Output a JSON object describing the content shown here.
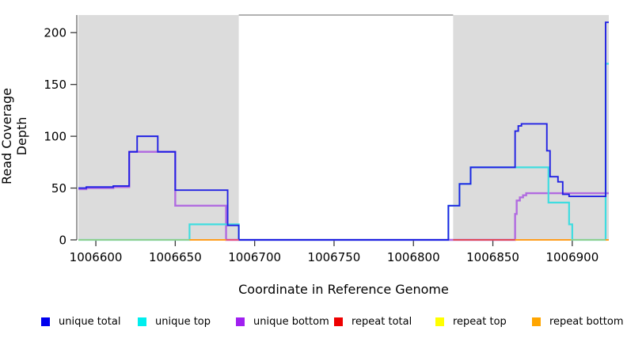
{
  "figure": {
    "xlabel": "Coordinate in Reference Genome",
    "ylabel": "Read Coverage Depth"
  },
  "legend": {
    "items": [
      {
        "label": "unique total",
        "color": "#0000ee"
      },
      {
        "label": "unique top",
        "color": "#00eeee"
      },
      {
        "label": "unique bottom",
        "color": "#a020f0"
      },
      {
        "label": "repeat total",
        "color": "#ee0000"
      },
      {
        "label": "repeat top",
        "color": "#ffff00"
      },
      {
        "label": "repeat bottom",
        "color": "#ffa500"
      }
    ]
  },
  "chart_data": {
    "type": "line",
    "line_style": "step",
    "title": "",
    "xlabel": "Coordinate in Reference Genome",
    "ylabel": "Read Coverage Depth",
    "xlim": [
      1006588,
      1006924
    ],
    "ylim": [
      0,
      217
    ],
    "xticks": [
      1006600,
      1006650,
      1006700,
      1006750,
      1006800,
      1006850,
      1006900
    ],
    "yticks": [
      0,
      50,
      100,
      150,
      200
    ],
    "grid": false,
    "legend_position": "bottom",
    "plot_background": "#ffffff",
    "highlight_color": "#dcdcdc",
    "highlight_regions": [
      {
        "from": 1006589,
        "to": 1006690
      },
      {
        "from": 1006825,
        "to": 1006923
      }
    ],
    "series": [
      {
        "name": "repeat total",
        "color": "#e04858",
        "line_width": 1.5,
        "steps": [
          [
            1006589,
            0
          ],
          [
            1006923,
            0
          ]
        ]
      },
      {
        "name": "repeat top",
        "color": "#f5e93c",
        "line_width": 1.5,
        "steps": [
          [
            1006589,
            0
          ],
          [
            1006923,
            0
          ]
        ]
      },
      {
        "name": "repeat bottom",
        "color": "#ff9e1e",
        "line_width": 2,
        "steps": [
          [
            1006589,
            0
          ],
          [
            1006923,
            0
          ]
        ]
      },
      {
        "name": "unique bottom",
        "color": "#b16be0",
        "line_width": 2.4,
        "steps": [
          [
            1006589,
            49
          ],
          [
            1006594,
            50
          ],
          [
            1006611,
            51
          ],
          [
            1006621,
            85
          ],
          [
            1006650,
            33
          ],
          [
            1006682,
            0
          ],
          [
            1006864,
            25
          ],
          [
            1006865,
            38
          ],
          [
            1006867,
            41
          ],
          [
            1006869,
            43
          ],
          [
            1006871,
            45
          ],
          [
            1006923,
            45
          ]
        ]
      },
      {
        "name": "unique top",
        "color": "#3fdde0",
        "line_width": 2.2,
        "steps": [
          [
            1006589,
            0
          ],
          [
            1006659,
            15
          ],
          [
            1006690,
            0
          ],
          [
            1006822,
            33
          ],
          [
            1006829,
            54
          ],
          [
            1006836,
            70
          ],
          [
            1006885,
            36
          ],
          [
            1006898,
            15
          ],
          [
            1006900,
            0
          ],
          [
            1006921,
            170
          ],
          [
            1006923,
            170
          ]
        ]
      },
      {
        "name": "unique total",
        "color": "#2121e3",
        "line_width": 1.9,
        "steps": [
          [
            1006589,
            50
          ],
          [
            1006594,
            51
          ],
          [
            1006611,
            52
          ],
          [
            1006621,
            85
          ],
          [
            1006626,
            100
          ],
          [
            1006639,
            85
          ],
          [
            1006650,
            48
          ],
          [
            1006683,
            14
          ],
          [
            1006690,
            0
          ],
          [
            1006822,
            33
          ],
          [
            1006829,
            54
          ],
          [
            1006836,
            70
          ],
          [
            1006864,
            105
          ],
          [
            1006866,
            110
          ],
          [
            1006868,
            112
          ],
          [
            1006884,
            86
          ],
          [
            1006886,
            61
          ],
          [
            1006891,
            56
          ],
          [
            1006894,
            44
          ],
          [
            1006898,
            42
          ],
          [
            1006921,
            210
          ],
          [
            1006923,
            210
          ]
        ]
      }
    ],
    "zero_line_overlap_segments": [
      {
        "from": 1006589,
        "to": 1006659,
        "color": "#8fcf8f"
      },
      {
        "from": 1006659,
        "to": 1006682,
        "color": "#ff9e1e"
      },
      {
        "from": 1006682,
        "to": 1006690,
        "color": "#e8507a"
      },
      {
        "from": 1006825,
        "to": 1006864,
        "color": "#e04858"
      },
      {
        "from": 1006864,
        "to": 1006899,
        "color": "#ff9e1e"
      },
      {
        "from": 1006899,
        "to": 1006921,
        "color": "#8fcf8f"
      },
      {
        "from": 1006921,
        "to": 1006923,
        "color": "#ff9e1e"
      }
    ]
  }
}
